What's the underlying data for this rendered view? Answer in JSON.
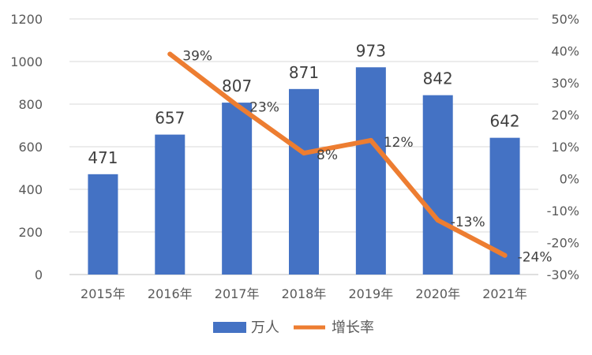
{
  "chart_data": {
    "type": "bar",
    "categories": [
      "2015年",
      "2016年",
      "2017年",
      "2018年",
      "2019年",
      "2020年",
      "2021年"
    ],
    "series": [
      {
        "name": "万人",
        "type": "bar",
        "axis": "left",
        "color": "#4472C4",
        "values": [
          471,
          657,
          807,
          871,
          973,
          842,
          642
        ],
        "labels": [
          "471",
          "657",
          "807",
          "871",
          "973",
          "842",
          "642"
        ]
      },
      {
        "name": "增长率",
        "type": "line",
        "axis": "right",
        "color": "#ED7D31",
        "values": [
          null,
          39,
          23,
          8,
          12,
          -13,
          -24
        ],
        "labels": [
          "",
          "39%",
          "23%",
          "8%",
          "12%",
          "-13%",
          "-24%"
        ]
      }
    ],
    "y_left": {
      "min": 0,
      "max": 1200,
      "ticks": [
        "0",
        "200",
        "400",
        "600",
        "800",
        "1000",
        "1200"
      ]
    },
    "y_right": {
      "min": -30,
      "max": 50,
      "ticks": [
        "-30%",
        "-20%",
        "-10%",
        "0%",
        "10%",
        "20%",
        "30%",
        "40%",
        "50%"
      ]
    },
    "grid": true,
    "legend": "bottom"
  }
}
